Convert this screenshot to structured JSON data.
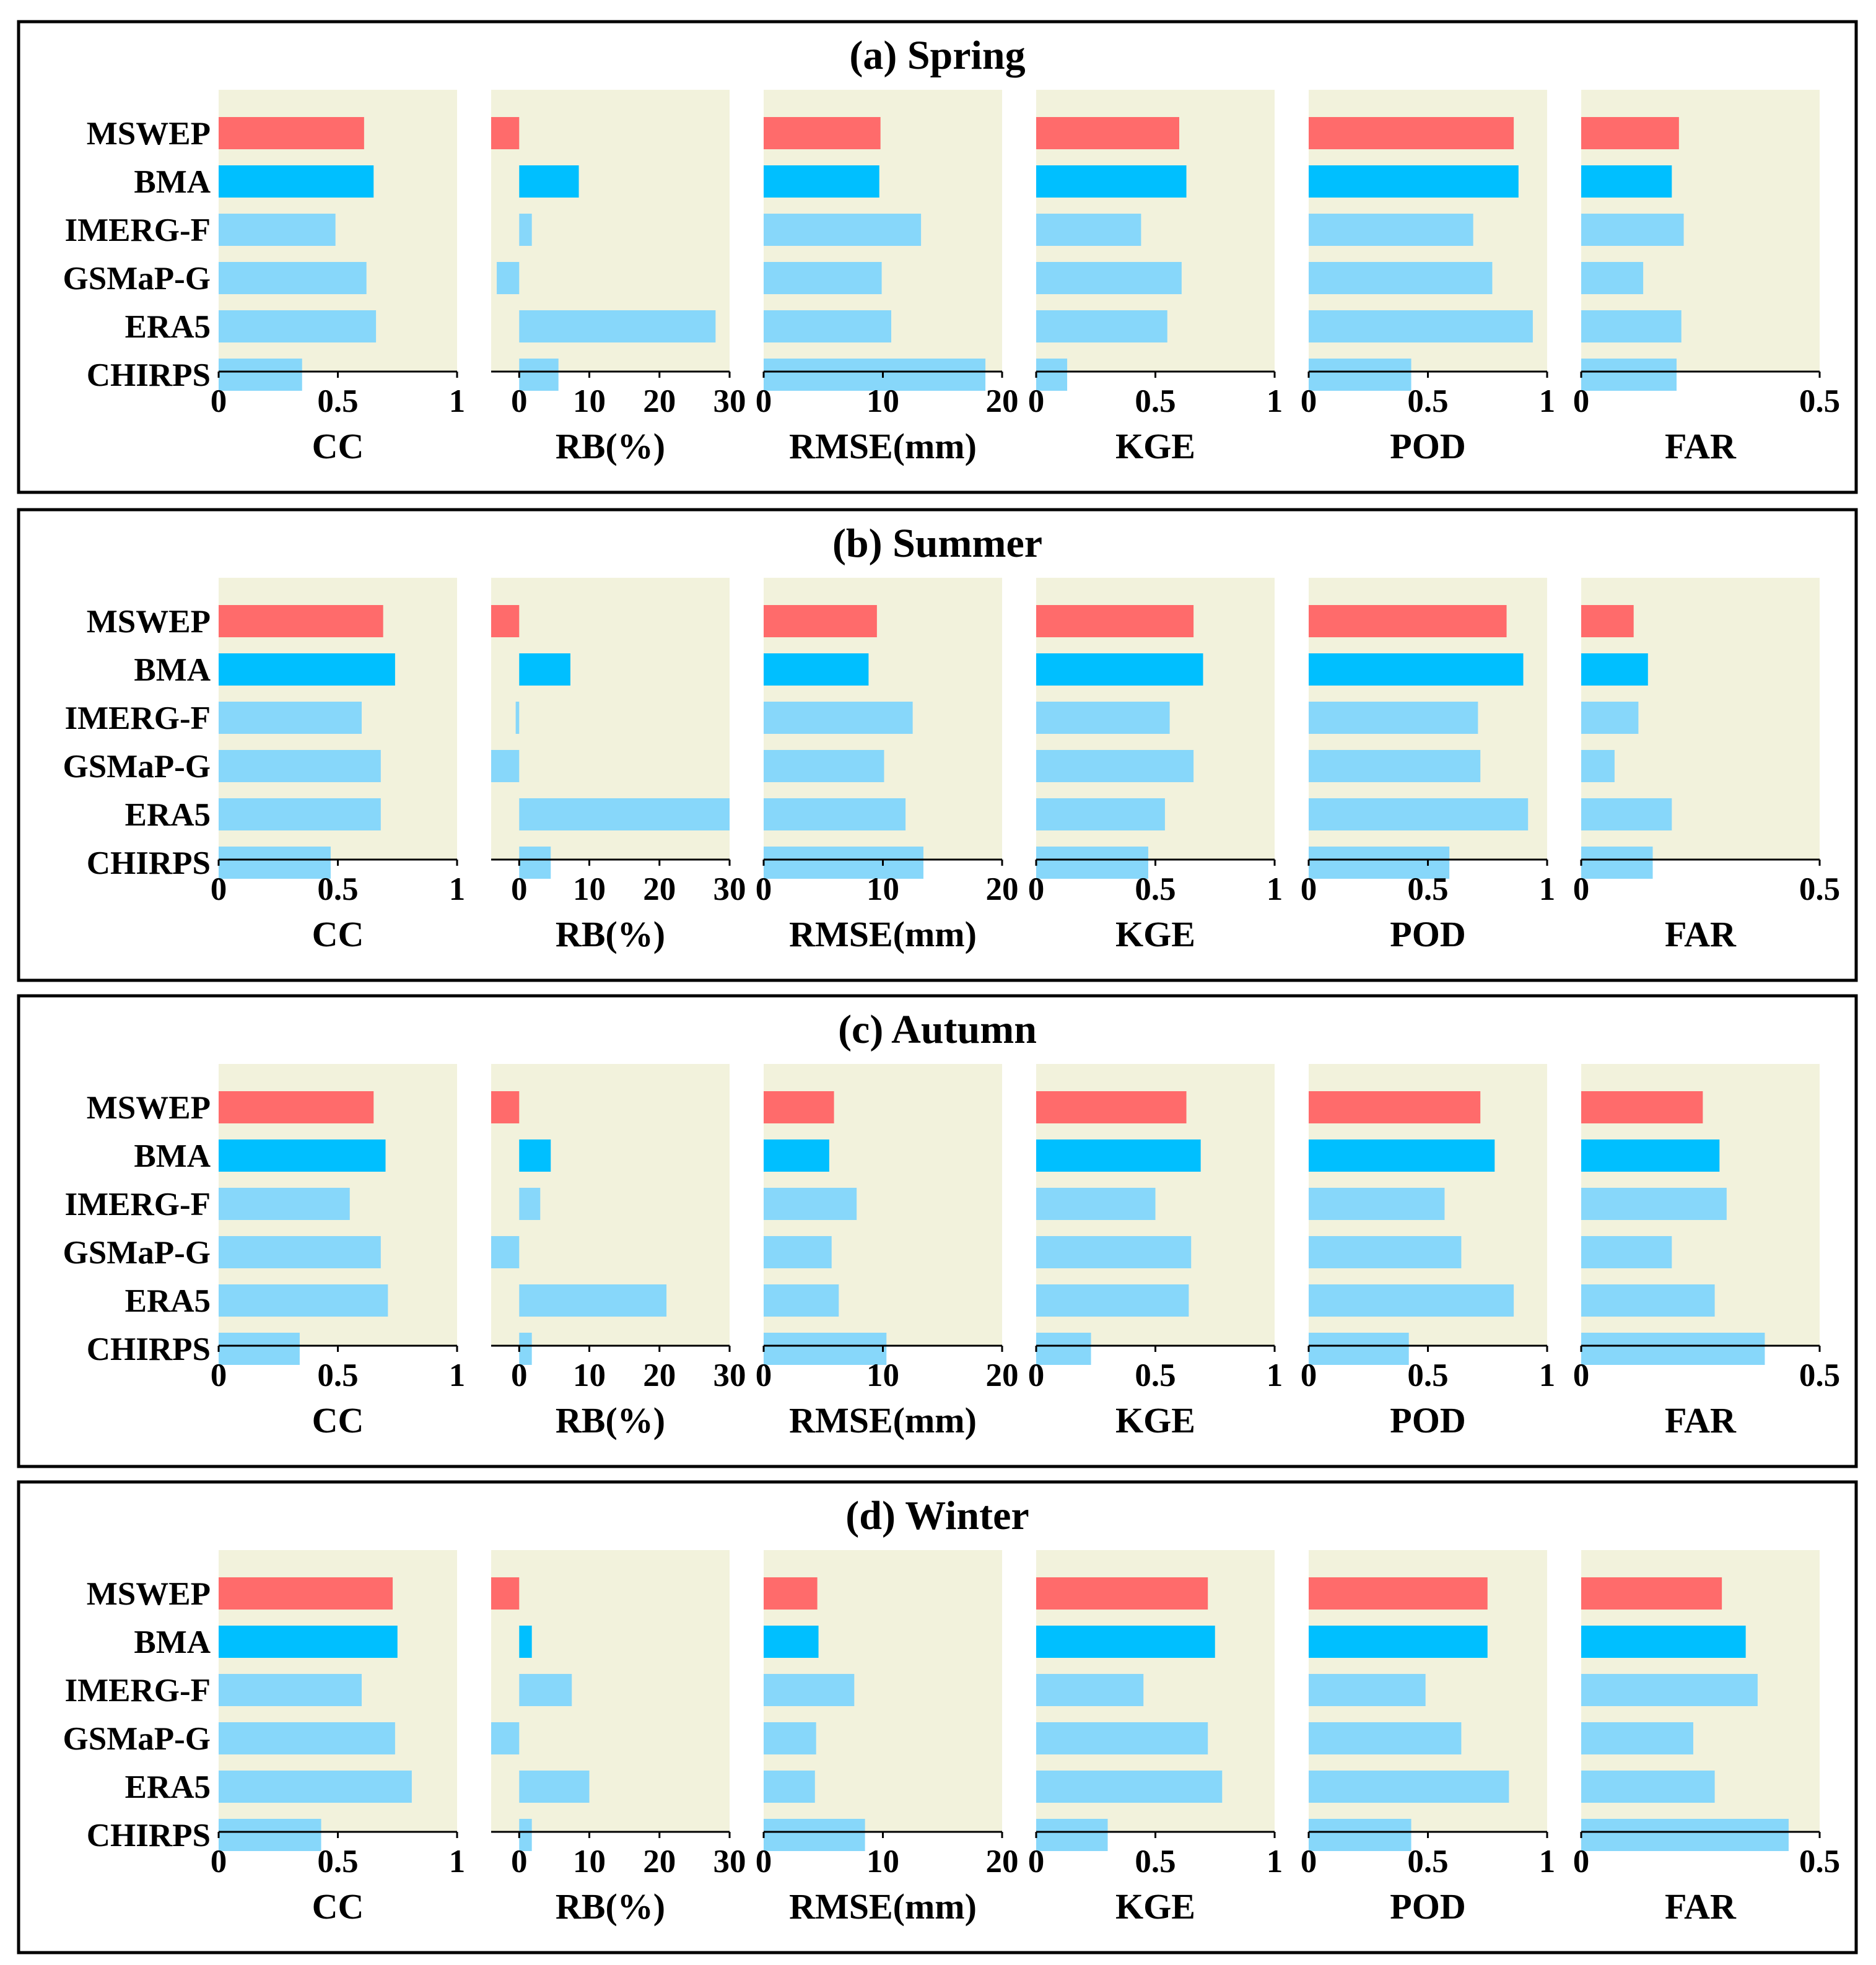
{
  "chart_data": {
    "type": "bar",
    "orientation": "horizontal",
    "categories": [
      "MSWEP",
      "BMA",
      "IMERG-F",
      "GSMaP-G",
      "ERA5",
      "CHIRPS"
    ],
    "highlight_colors": {
      "MSWEP": "#ff6b6b",
      "BMA": "#00bfff",
      "default": "#87d7fa"
    },
    "plot_background": "#f2f2dc",
    "metrics": [
      {
        "key": "CC",
        "label": "CC",
        "xlim": [
          0,
          1
        ],
        "ticks": [
          0,
          0.5,
          1
        ],
        "tick_labels": [
          "0",
          "0.5",
          "1"
        ]
      },
      {
        "key": "RB",
        "label": "RB(%)",
        "xlim": [
          -4,
          30
        ],
        "ticks": [
          0,
          10,
          20,
          30
        ],
        "tick_labels": [
          "0",
          "10",
          "20",
          "30"
        ]
      },
      {
        "key": "RMSE",
        "label": "RMSE(mm)",
        "xlim": [
          0,
          20
        ],
        "ticks": [
          0,
          10,
          20
        ],
        "tick_labels": [
          "0",
          "10",
          "20"
        ]
      },
      {
        "key": "KGE",
        "label": "KGE",
        "xlim": [
          0,
          1
        ],
        "ticks": [
          0,
          0.5,
          1
        ],
        "tick_labels": [
          "0",
          "0.5",
          "1"
        ]
      },
      {
        "key": "POD",
        "label": "POD",
        "xlim": [
          0,
          1
        ],
        "ticks": [
          0,
          0.5,
          1
        ],
        "tick_labels": [
          "0",
          "0.5",
          "1"
        ]
      },
      {
        "key": "FAR",
        "label": "FAR",
        "xlim": [
          0,
          0.5
        ],
        "ticks": [
          0,
          0.5
        ],
        "tick_labels": [
          "0",
          "0.5"
        ]
      }
    ],
    "panels": [
      {
        "title": "(a) Spring",
        "values": {
          "CC": [
            0.61,
            0.65,
            0.49,
            0.62,
            0.66,
            0.35
          ],
          "RB": [
            -4.0,
            8.5,
            1.8,
            -3.2,
            28.0,
            5.6
          ],
          "RMSE": [
            9.8,
            9.7,
            13.2,
            9.9,
            10.7,
            18.6
          ],
          "KGE": [
            0.6,
            0.63,
            0.44,
            0.61,
            0.55,
            0.13
          ],
          "POD": [
            0.86,
            0.88,
            0.69,
            0.77,
            0.94,
            0.43
          ],
          "FAR": [
            0.205,
            0.19,
            0.215,
            0.13,
            0.21,
            0.2
          ]
        }
      },
      {
        "title": "(b) Summer",
        "values": {
          "CC": [
            0.69,
            0.74,
            0.6,
            0.68,
            0.68,
            0.47
          ],
          "RB": [
            -4.0,
            7.3,
            -0.5,
            -4.0,
            30.0,
            4.5
          ],
          "RMSE": [
            9.5,
            8.8,
            12.5,
            10.1,
            11.9,
            13.4
          ],
          "KGE": [
            0.66,
            0.7,
            0.56,
            0.66,
            0.54,
            0.47
          ],
          "POD": [
            0.83,
            0.9,
            0.71,
            0.72,
            0.92,
            0.59
          ],
          "FAR": [
            0.11,
            0.14,
            0.12,
            0.07,
            0.19,
            0.15
          ]
        }
      },
      {
        "title": "(c) Autumn",
        "values": {
          "CC": [
            0.65,
            0.7,
            0.55,
            0.68,
            0.71,
            0.34
          ],
          "RB": [
            -4.0,
            4.5,
            3.0,
            -4.0,
            21.0,
            1.8
          ],
          "RMSE": [
            5.9,
            5.5,
            7.8,
            5.7,
            6.3,
            10.3
          ],
          "KGE": [
            0.63,
            0.69,
            0.5,
            0.65,
            0.64,
            0.23
          ],
          "POD": [
            0.72,
            0.78,
            0.57,
            0.64,
            0.86,
            0.42
          ],
          "FAR": [
            0.255,
            0.29,
            0.305,
            0.19,
            0.28,
            0.385
          ]
        }
      },
      {
        "title": "(d) Winter",
        "values": {
          "CC": [
            0.73,
            0.75,
            0.6,
            0.74,
            0.81,
            0.43
          ],
          "RB": [
            -4.0,
            1.8,
            7.5,
            -4.0,
            10.0,
            1.8
          ],
          "RMSE": [
            4.5,
            4.6,
            7.6,
            4.4,
            4.3,
            8.5
          ],
          "KGE": [
            0.72,
            0.75,
            0.45,
            0.72,
            0.78,
            0.3
          ],
          "POD": [
            0.75,
            0.75,
            0.49,
            0.64,
            0.84,
            0.43
          ],
          "FAR": [
            0.295,
            0.345,
            0.37,
            0.235,
            0.28,
            0.435
          ]
        }
      }
    ]
  }
}
